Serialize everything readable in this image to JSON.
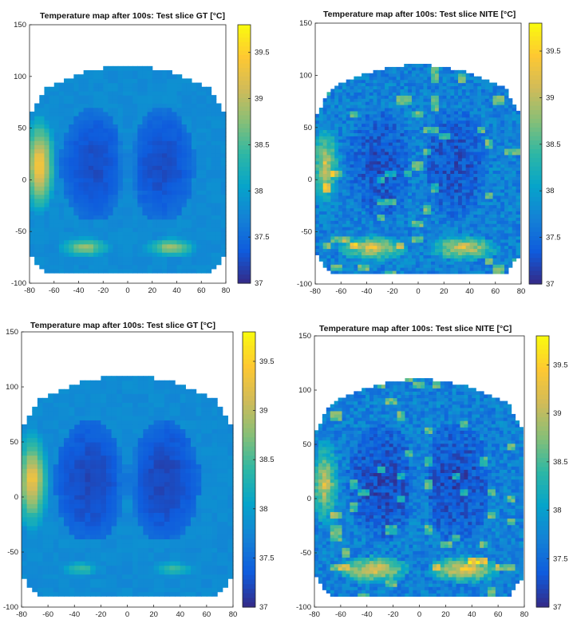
{
  "chart_data": [
    {
      "type": "heatmap",
      "title": "Temperature map after 100s: Test slice GT [°C]",
      "x_ticks": [
        "-80",
        "-60",
        "-40",
        "-20",
        "0",
        "20",
        "40",
        "60",
        "80"
      ],
      "y_ticks": [
        "150",
        "100",
        "50",
        "0",
        "-50",
        "-100"
      ],
      "xlim": [
        -80,
        80
      ],
      "ylim": [
        -100,
        150
      ],
      "colorbar": {
        "ticks": [
          "39.5",
          "39",
          "38.5",
          "38",
          "37.5",
          "37"
        ],
        "range": [
          37,
          39.8
        ]
      },
      "features": {
        "background": 37.8,
        "ventricle": 37.2,
        "hot_left": 39.6,
        "hot_bottom": 39.0,
        "noise": false
      }
    },
    {
      "type": "heatmap",
      "title": "Temperature map after 100s: Test slice NITE [°C]",
      "x_ticks": [
        "-80",
        "-60",
        "-40",
        "-20",
        "0",
        "20",
        "40",
        "60",
        "80"
      ],
      "y_ticks": [
        "150",
        "100",
        "50",
        "0",
        "-50",
        "-100"
      ],
      "xlim": [
        -80,
        80
      ],
      "ylim": [
        -100,
        150
      ],
      "colorbar": {
        "ticks": [
          "39.5",
          "39",
          "38.5",
          "38",
          "37.5",
          "37"
        ],
        "range": [
          37,
          39.8
        ]
      },
      "features": {
        "background": 37.7,
        "ventricle": 37.25,
        "hot_left": 39.2,
        "hot_bottom": 39.3,
        "noise": true
      }
    },
    {
      "type": "heatmap",
      "title": "Temperature map after 100s: Test slice GT [°C]",
      "x_ticks": [
        "-80",
        "-60",
        "-40",
        "-20",
        "0",
        "20",
        "40",
        "60",
        "80"
      ],
      "y_ticks": [
        "150",
        "100",
        "50",
        "0",
        "-50",
        "-100"
      ],
      "xlim": [
        -80,
        80
      ],
      "ylim": [
        -100,
        150
      ],
      "colorbar": {
        "ticks": [
          "39.5",
          "39",
          "38.5",
          "38",
          "37.5",
          "37"
        ],
        "range": [
          37,
          39.8
        ]
      },
      "features": {
        "background": 37.8,
        "ventricle": 37.15,
        "hot_left": 39.5,
        "hot_bottom": 38.6,
        "noise": false
      }
    },
    {
      "type": "heatmap",
      "title": "Temperature map after 100s: Test slice NITE [°C]",
      "x_ticks": [
        "-80",
        "-60",
        "-40",
        "-20",
        "0",
        "20",
        "40",
        "60",
        "80"
      ],
      "y_ticks": [
        "150",
        "100",
        "50",
        "0",
        "-50",
        "-100"
      ],
      "xlim": [
        -80,
        80
      ],
      "ylim": [
        -100,
        150
      ],
      "colorbar": {
        "ticks": [
          "39.5",
          "39",
          "38.5",
          "38",
          "37.5",
          "37"
        ],
        "range": [
          37,
          39.8
        ]
      },
      "features": {
        "background": 37.7,
        "ventricle": 37.2,
        "hot_left": 39.2,
        "hot_bottom": 39.4,
        "noise": true
      }
    }
  ],
  "colors": {
    "parula": [
      "#352a87",
      "#0f5cdd",
      "#1481d6",
      "#06a4ca",
      "#2eb7a4",
      "#87bf77",
      "#d1bb59",
      "#fec832",
      "#f9fb0e"
    ]
  }
}
